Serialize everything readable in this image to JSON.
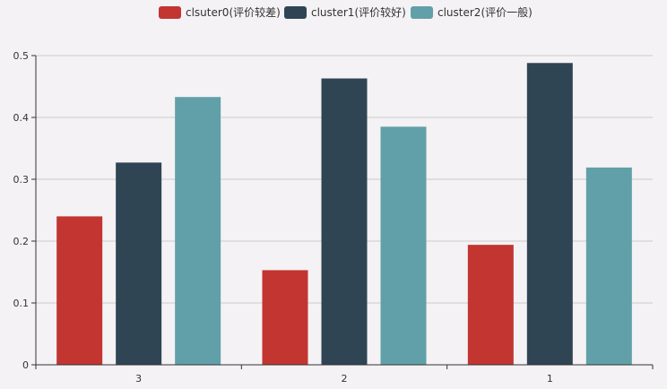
{
  "chart_data": {
    "type": "bar",
    "title": "",
    "xlabel": "",
    "ylabel": "",
    "categories": [
      "3",
      "2",
      "1"
    ],
    "ylim": [
      0,
      0.5
    ],
    "yticks": [
      "0",
      "0.1",
      "0.2",
      "0.3",
      "0.4",
      "0.5"
    ],
    "ytick_values": [
      0,
      0.1,
      0.2,
      0.3,
      0.4,
      0.5
    ],
    "grid": true,
    "legend_position": "top-center",
    "series": [
      {
        "name": "clsuter0(评价较差)",
        "color": "#c23531",
        "values": [
          0.24,
          0.153,
          0.194
        ]
      },
      {
        "name": "cluster1(评价较好)",
        "color": "#2f4554",
        "values": [
          0.327,
          0.463,
          0.488
        ]
      },
      {
        "name": "cluster2(评价一般)",
        "color": "#61a0a8",
        "values": [
          0.433,
          0.385,
          0.319
        ]
      }
    ]
  }
}
